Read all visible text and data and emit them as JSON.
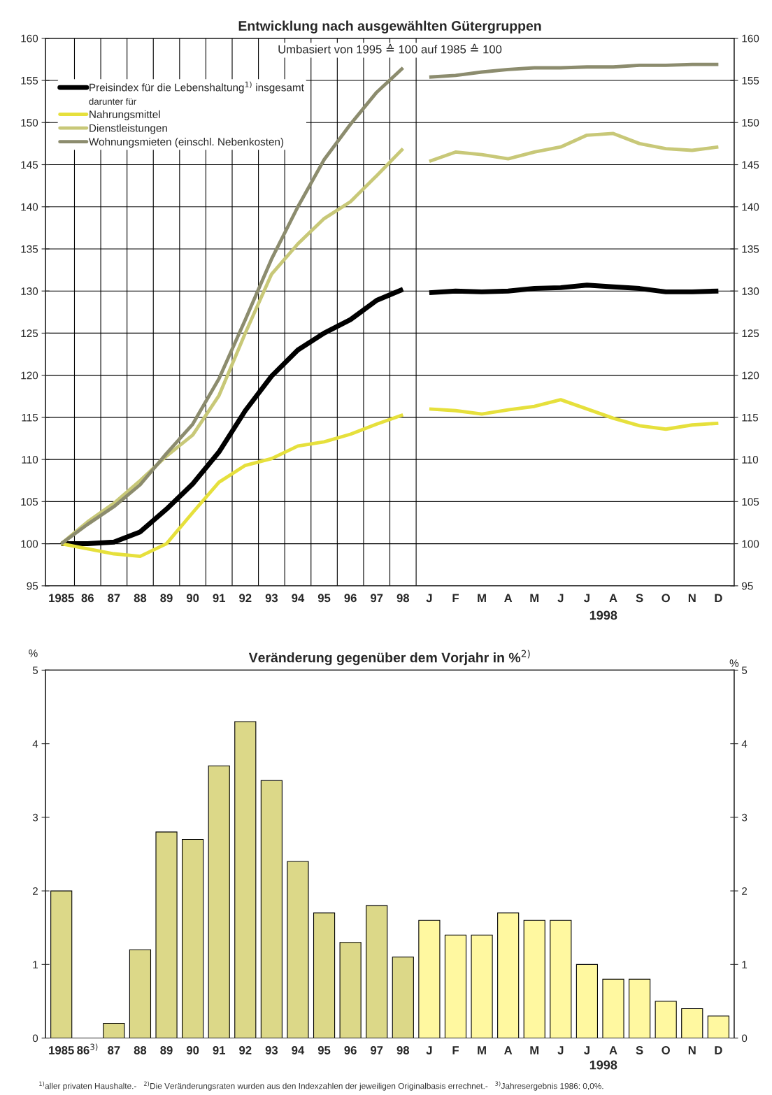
{
  "chart_data": [
    {
      "type": "line",
      "title": "Entwicklung nach ausgewählten Gütergruppen",
      "categories": [
        "1985",
        "86",
        "87",
        "88",
        "89",
        "90",
        "91",
        "92",
        "93",
        "94",
        "95",
        "96",
        "97",
        "98",
        "J",
        "F",
        "M",
        "A",
        "M",
        "J",
        "J",
        "A",
        "S",
        "O",
        "N",
        "D"
      ],
      "xlabel": "1998",
      "series": [
        {
          "name": "Preisindex für die Lebenshaltung$^{1)}$ insgesamt",
          "color": "#000000",
          "values": [
            100,
            100.0,
            100.2,
            101.4,
            104.1,
            107.1,
            110.9,
            115.8,
            119.9,
            123.0,
            125.0,
            126.6,
            128.9,
            130.2,
            null,
            null,
            null,
            null,
            null,
            null,
            null,
            null,
            null,
            null,
            null,
            null
          ]
        },
        {
          "name": "Nahrungsmittel",
          "color": "#e6e03c",
          "values": [
            100,
            99.4,
            98.8,
            98.5,
            100.0,
            103.7,
            107.3,
            109.3,
            110.1,
            111.6,
            112.1,
            113.0,
            114.2,
            115.3,
            null,
            null,
            null,
            null,
            null,
            null,
            null,
            null,
            null,
            null,
            null,
            null
          ]
        },
        {
          "name": "Dienstleistungen",
          "color": "#c8c878",
          "values": [
            100,
            102.6,
            104.8,
            107.5,
            110.4,
            112.9,
            117.6,
            125.0,
            132.0,
            135.6,
            138.6,
            140.6,
            143.7,
            146.9,
            null,
            null,
            null,
            null,
            null,
            null,
            null,
            null,
            null,
            null,
            null,
            null
          ]
        },
        {
          "name": "Wohnungsmieten (einschl. Nebenkosten)",
          "color": "#8c8c6e",
          "values": [
            100,
            102.3,
            104.4,
            107.0,
            110.7,
            114.2,
            119.6,
            126.6,
            133.8,
            140.0,
            145.6,
            149.8,
            153.6,
            156.5,
            null,
            null,
            null,
            null,
            null,
            null,
            null,
            null,
            null,
            null,
            null,
            null
          ]
        },
        {
          "color": "#000000",
          "values": [
            null,
            null,
            null,
            null,
            null,
            null,
            null,
            null,
            null,
            null,
            null,
            null,
            null,
            null,
            129.8,
            130.0,
            129.9,
            130.0,
            130.3,
            130.4,
            130.7,
            130.5,
            130.3,
            129.9,
            129.9,
            130.0
          ]
        },
        {
          "color": "#e6e03c",
          "values": [
            null,
            null,
            null,
            null,
            null,
            null,
            null,
            null,
            null,
            null,
            null,
            null,
            null,
            null,
            116.0,
            115.8,
            115.4,
            115.9,
            116.3,
            117.1,
            116.0,
            114.9,
            114.0,
            113.6,
            114.1,
            114.3
          ]
        },
        {
          "color": "#c8c878",
          "values": [
            null,
            null,
            null,
            null,
            null,
            null,
            null,
            null,
            null,
            null,
            null,
            null,
            null,
            null,
            145.4,
            146.5,
            146.2,
            145.7,
            146.5,
            147.1,
            148.5,
            148.7,
            147.5,
            146.9,
            146.7,
            147.1
          ]
        },
        {
          "color": "#8c8c6e",
          "values": [
            null,
            null,
            null,
            null,
            null,
            null,
            null,
            null,
            null,
            null,
            null,
            null,
            null,
            null,
            155.4,
            155.6,
            156.0,
            156.3,
            156.5,
            156.5,
            156.6,
            156.6,
            156.8,
            156.8,
            156.9,
            156.9
          ]
        }
      ],
      "annotations": [
        "Umbasiert von 1995 ≙ 100 auf 1985 ≙ 100",
        "darunter für"
      ],
      "ylim": [
        95,
        160
      ],
      "yticks": [
        95,
        100,
        105,
        110,
        115,
        120,
        125,
        130,
        135,
        140,
        145,
        150,
        155,
        160
      ],
      "y2lim": [
        95,
        160
      ],
      "y2ticks": [
        95,
        100,
        105,
        110,
        115,
        120,
        125,
        130,
        135,
        140,
        145,
        150,
        155,
        160
      ],
      "grid": true,
      "legend": "top left",
      "line_style": "solid"
    },
    {
      "type": "bar",
      "title": "Veränderung gegenüber dem Vorjahr in %$^{2)}$",
      "categories": [
        "1985",
        "86$^{3)}$",
        "87",
        "88",
        "89",
        "90",
        "91",
        "92",
        "93",
        "94",
        "95",
        "96",
        "97",
        "98",
        "J",
        "F",
        "M",
        "A",
        "M",
        "J",
        "J",
        "A",
        "S",
        "O",
        "N",
        "D"
      ],
      "xlabel": "1998",
      "ylabel": "%",
      "y2label": "%",
      "values": [
        2.0,
        0,
        0.2,
        1.2,
        2.8,
        2.7,
        3.7,
        4.3,
        3.5,
        2.4,
        1.7,
        1.3,
        1.8,
        1.1,
        1.6,
        1.4,
        1.4,
        1.7,
        1.6,
        1.6,
        1.0,
        0.8,
        0.8,
        0.5,
        0.4,
        0.3
      ],
      "colors": [
        "#dcd888",
        "#dcd888",
        "#dcd888",
        "#dcd888",
        "#dcd888",
        "#dcd888",
        "#dcd888",
        "#dcd888",
        "#dcd888",
        "#dcd888",
        "#dcd888",
        "#dcd888",
        "#dcd888",
        "#dcd888",
        "#fff8a0",
        "#fff8a0",
        "#fff8a0",
        "#fff8a0",
        "#fff8a0",
        "#fff8a0",
        "#fff8a0",
        "#fff8a0",
        "#fff8a0",
        "#fff8a0",
        "#fff8a0",
        "#fff8a0"
      ],
      "ylim": [
        0,
        5
      ],
      "yticks": [
        0,
        1,
        2,
        3,
        4,
        5
      ],
      "y2lim": [
        0,
        5
      ],
      "y2ticks": [
        0,
        1,
        2,
        3,
        4,
        5
      ],
      "grid": false,
      "annotations": [
        "$^{1)}$aller privaten Haushalte.-   $^{2)}$Die Veränderungsraten wurden aus den Indexzahlen der jeweiligen Originalbasis errechnet.-   $^{3)}$Jahresergebnis 1986: 0,0%."
      ]
    }
  ]
}
